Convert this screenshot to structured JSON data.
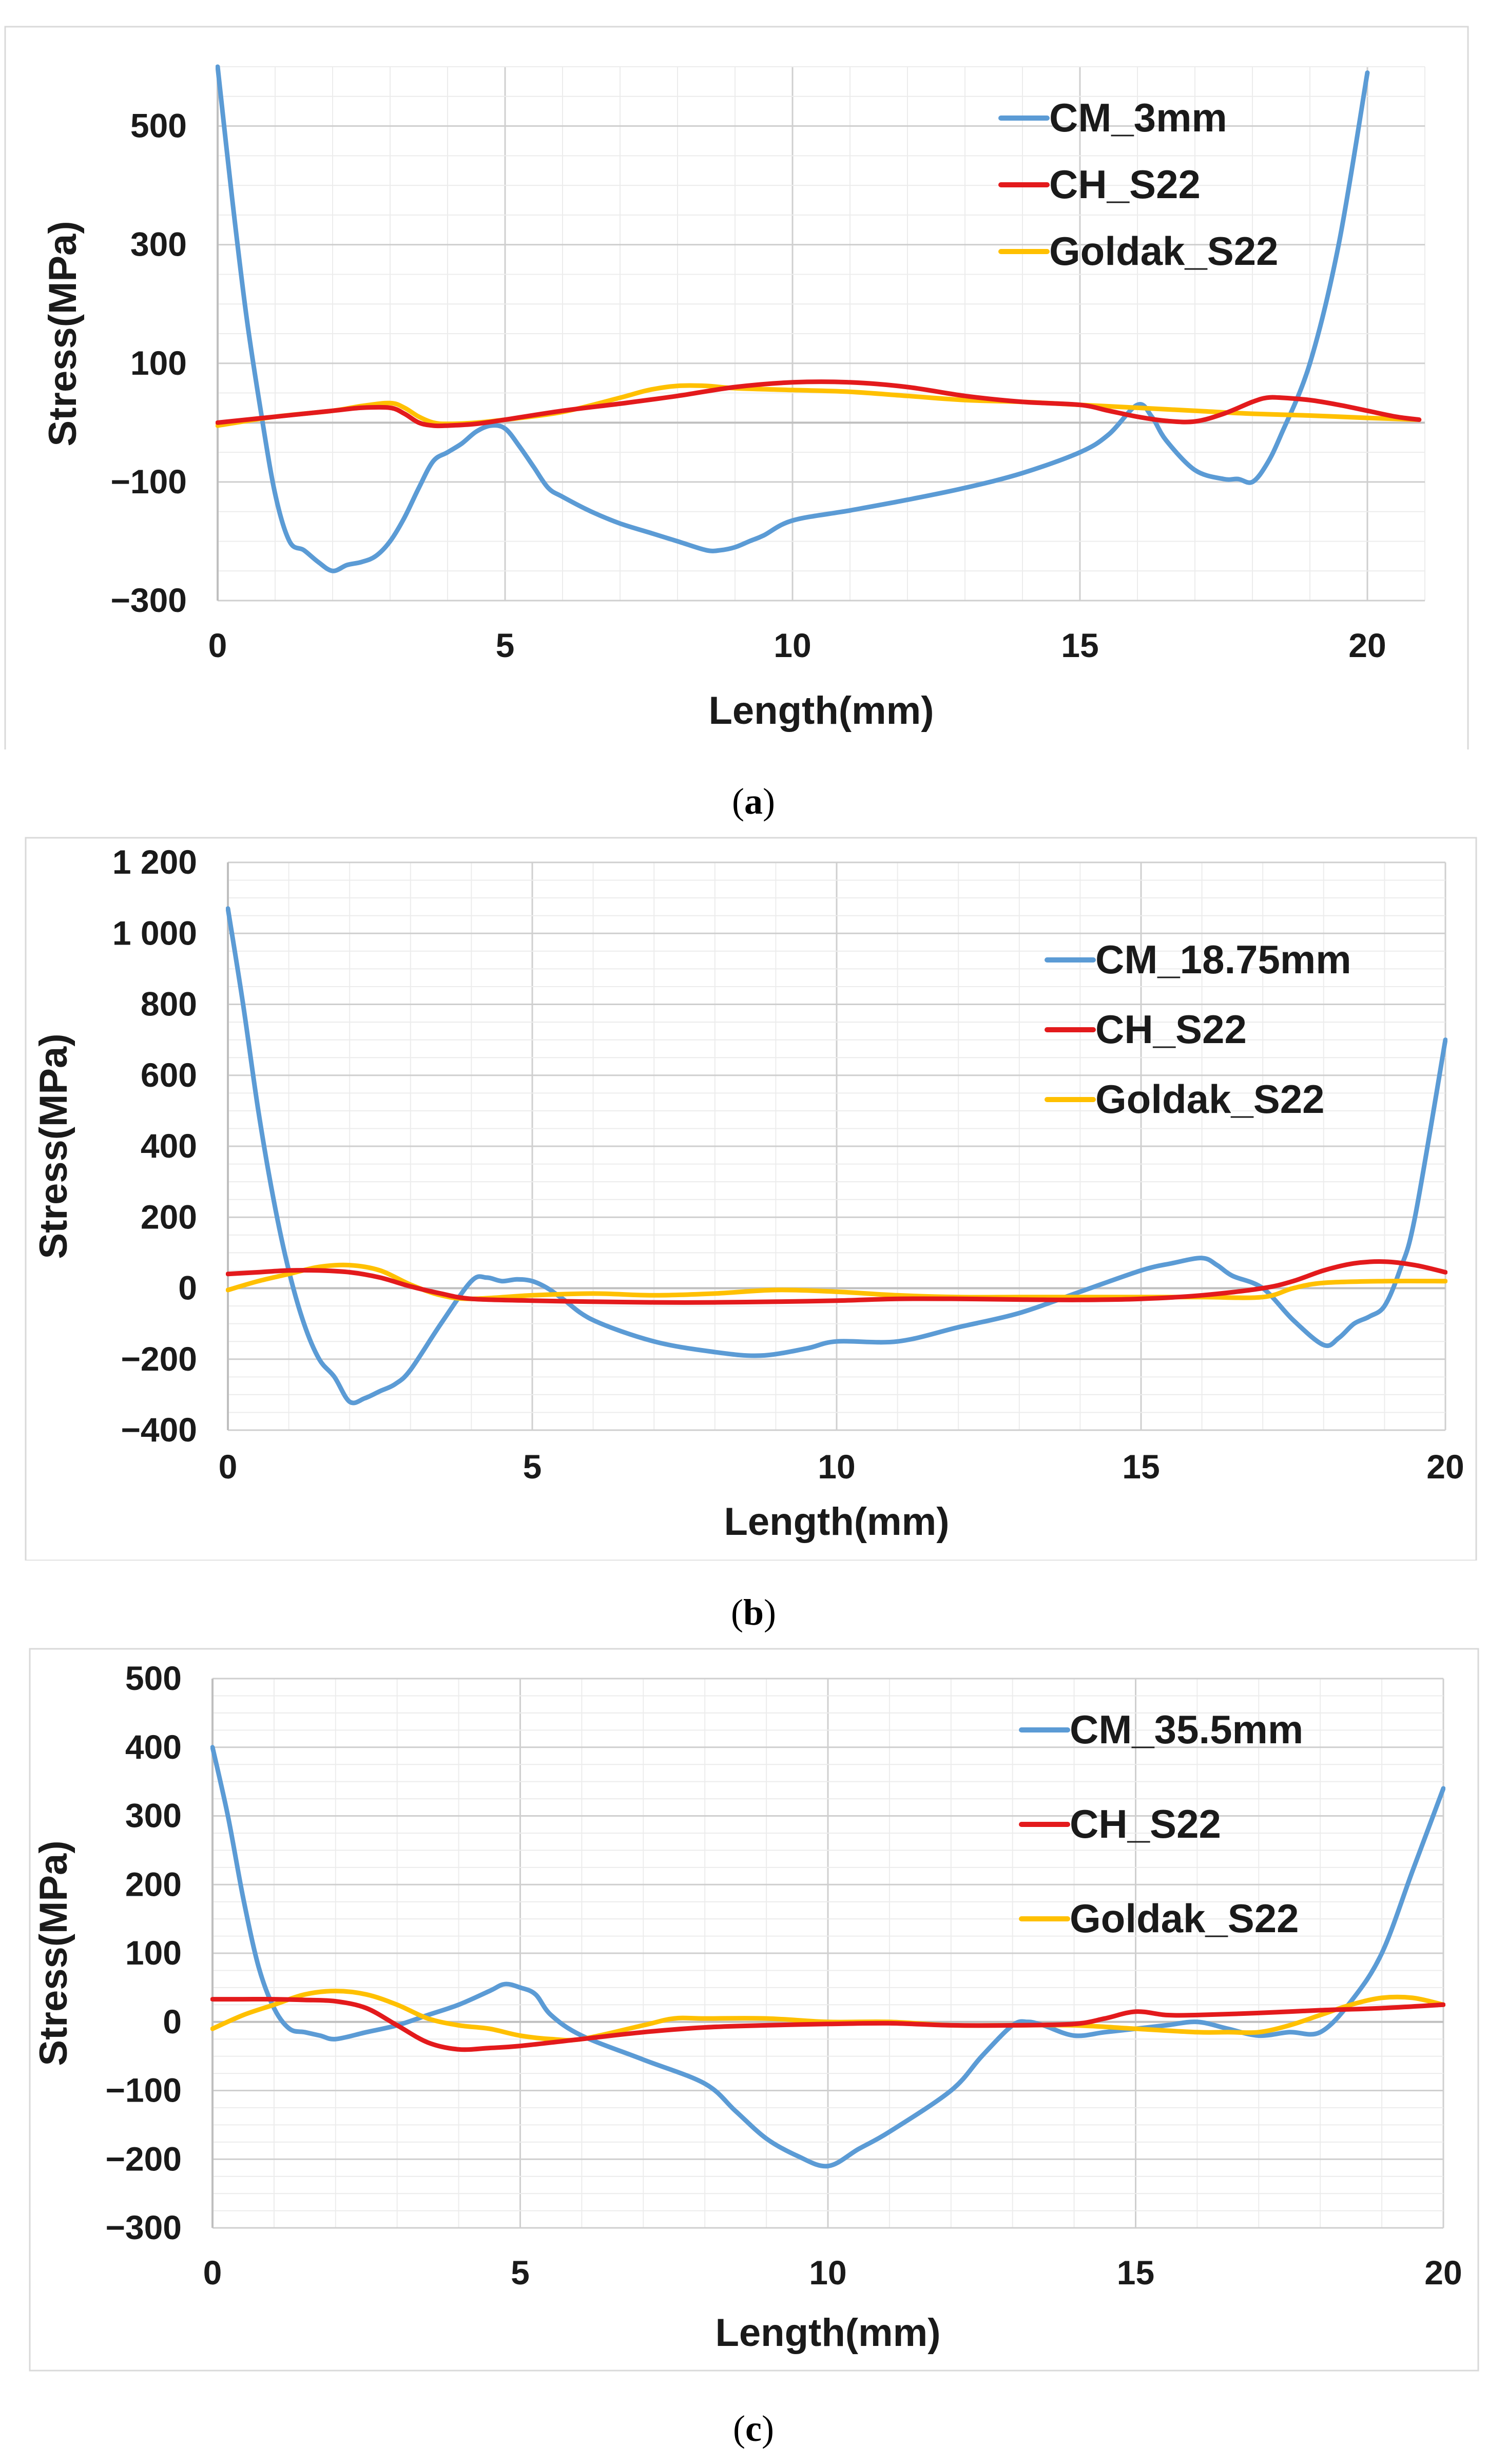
{
  "chart_data": [
    {
      "type": "line",
      "panel_label": "a",
      "xlabel": "Length(mm)",
      "ylabel": "Stress(MPa)",
      "xlim": [
        0,
        21
      ],
      "ylim": [
        -300,
        600
      ],
      "xticks": [
        0,
        5,
        10,
        15,
        20
      ],
      "yticks": [
        -300,
        -100,
        100,
        300,
        500
      ],
      "ytick_labels": [
        "−300",
        "−100",
        "100",
        "300",
        "500"
      ],
      "legend_position": "top-right",
      "series": [
        {
          "name": "CM_3mm",
          "color": "#5B9BD5",
          "x": [
            0,
            0.25,
            0.5,
            0.75,
            1.0,
            1.25,
            1.5,
            1.75,
            2.0,
            2.25,
            2.5,
            2.75,
            3.0,
            3.25,
            3.5,
            3.75,
            4.0,
            4.25,
            4.5,
            4.75,
            5.0,
            5.25,
            5.5,
            5.75,
            6.0,
            6.5,
            7.0,
            7.5,
            8.0,
            8.5,
            8.75,
            9.0,
            9.25,
            9.5,
            10.0,
            11.0,
            12.0,
            13.0,
            14.0,
            15.0,
            15.5,
            16.0,
            16.25,
            16.5,
            17.0,
            17.5,
            17.75,
            18.0,
            18.25,
            18.5,
            19.0,
            19.5,
            20.0
          ],
          "y": [
            600,
            380,
            180,
            20,
            -120,
            -200,
            -215,
            -235,
            -250,
            -240,
            -235,
            -225,
            -200,
            -160,
            -110,
            -65,
            -50,
            -35,
            -15,
            -5,
            -10,
            -40,
            -75,
            -110,
            -125,
            -150,
            -170,
            -185,
            -200,
            -215,
            -215,
            -210,
            -200,
            -190,
            -165,
            -148,
            -130,
            -110,
            -85,
            -50,
            -20,
            30,
            10,
            -30,
            -80,
            -95,
            -95,
            -100,
            -70,
            -20,
            100,
            300,
            590
          ]
        },
        {
          "name": "CH_S22",
          "color": "#E31A1C",
          "x": [
            0,
            1,
            2,
            2.5,
            3.0,
            3.25,
            3.5,
            3.75,
            4.0,
            4.5,
            5,
            6,
            7,
            8,
            9,
            10,
            11,
            12,
            13,
            14,
            15,
            15.5,
            16,
            16.5,
            17,
            17.5,
            18,
            18.25,
            18.5,
            19,
            19.5,
            20,
            20.5,
            20.9
          ],
          "y": [
            0,
            10,
            20,
            25,
            25,
            15,
            0,
            -5,
            -5,
            -2,
            5,
            20,
            32,
            45,
            60,
            68,
            68,
            60,
            45,
            35,
            30,
            20,
            10,
            3,
            2,
            15,
            35,
            42,
            42,
            38,
            30,
            20,
            10,
            5
          ]
        },
        {
          "name": "Goldak_S22",
          "color": "#FFC000",
          "x": [
            0,
            1,
            2,
            2.5,
            3.0,
            3.25,
            3.5,
            3.75,
            4.0,
            4.5,
            5,
            6,
            7,
            7.5,
            8,
            8.5,
            9,
            10,
            11,
            12,
            13,
            14,
            15,
            16,
            17,
            18,
            19,
            20,
            20.9
          ],
          "y": [
            -5,
            10,
            20,
            28,
            33,
            25,
            10,
            0,
            -2,
            0,
            5,
            18,
            42,
            55,
            62,
            62,
            58,
            55,
            52,
            45,
            38,
            35,
            30,
            25,
            20,
            15,
            12,
            8,
            5
          ]
        }
      ]
    },
    {
      "type": "line",
      "panel_label": "b",
      "xlabel": "Length(mm)",
      "ylabel": "Stress(MPa)",
      "xlim": [
        0,
        20
      ],
      "ylim": [
        -400,
        1200
      ],
      "xticks": [
        0,
        5,
        10,
        15,
        20
      ],
      "yticks": [
        -400,
        -200,
        0,
        200,
        400,
        600,
        800,
        1000,
        1200
      ],
      "ytick_labels": [
        "−400",
        "−200",
        "0",
        "200",
        "400",
        "600",
        "800",
        "1 000",
        "1 200"
      ],
      "legend_position": "right",
      "series": [
        {
          "name": "CM_18.75mm",
          "color": "#5B9BD5",
          "x": [
            0,
            0.25,
            0.5,
            0.75,
            1.0,
            1.25,
            1.5,
            1.75,
            2.0,
            2.25,
            2.5,
            2.75,
            3.0,
            3.5,
            4.0,
            4.25,
            4.5,
            4.75,
            5.0,
            5.25,
            5.5,
            6,
            7,
            8,
            8.75,
            9.5,
            10,
            11,
            12,
            13,
            14,
            15,
            15.5,
            16,
            16.25,
            16.5,
            17,
            17.5,
            18,
            18.25,
            18.5,
            18.75,
            19,
            19.25,
            19.5,
            20
          ],
          "y": [
            1070,
            800,
            500,
            250,
            50,
            -100,
            -200,
            -250,
            -320,
            -310,
            -290,
            -270,
            -230,
            -100,
            20,
            30,
            20,
            25,
            20,
            0,
            -30,
            -90,
            -150,
            -180,
            -190,
            -170,
            -150,
            -150,
            -110,
            -70,
            -10,
            50,
            70,
            85,
            65,
            35,
            0,
            -90,
            -160,
            -140,
            -100,
            -80,
            -50,
            50,
            200,
            700
          ]
        },
        {
          "name": "CH_S22",
          "color": "#E31A1C",
          "x": [
            0,
            0.5,
            1,
            1.5,
            2,
            2.5,
            3,
            3.5,
            4,
            5,
            6,
            7,
            8,
            9,
            10,
            11,
            12,
            13,
            14,
            15,
            16,
            17,
            17.5,
            18,
            18.5,
            19,
            19.5,
            20
          ],
          "y": [
            40,
            45,
            50,
            50,
            45,
            30,
            5,
            -15,
            -30,
            -35,
            -38,
            -40,
            -40,
            -38,
            -35,
            -30,
            -30,
            -32,
            -33,
            -30,
            -20,
            0,
            20,
            50,
            70,
            75,
            65,
            45
          ]
        },
        {
          "name": "Goldak_S22",
          "color": "#FFC000",
          "x": [
            0,
            0.5,
            1,
            1.5,
            2,
            2.5,
            3,
            3.5,
            4,
            5,
            6,
            7,
            8,
            9,
            10,
            11,
            12,
            13,
            14,
            15,
            16,
            17,
            17.5,
            18,
            19,
            20
          ],
          "y": [
            -5,
            20,
            40,
            60,
            65,
            50,
            10,
            -20,
            -30,
            -20,
            -15,
            -20,
            -15,
            -5,
            -10,
            -20,
            -25,
            -25,
            -25,
            -25,
            -25,
            -25,
            0,
            15,
            20,
            20
          ]
        }
      ]
    },
    {
      "type": "line",
      "panel_label": "c",
      "xlabel": "Length(mm)",
      "ylabel": "Stress(MPa)",
      "xlim": [
        0,
        20
      ],
      "ylim": [
        -300,
        500
      ],
      "xticks": [
        0,
        5,
        10,
        15,
        20
      ],
      "yticks": [
        -300,
        -200,
        -100,
        0,
        100,
        200,
        300,
        400,
        500
      ],
      "ytick_labels": [
        "−300",
        "−200",
        "−100",
        "0",
        "100",
        "200",
        "300",
        "400",
        "500"
      ],
      "legend_position": "top-right",
      "series": [
        {
          "name": "CM_35.5mm",
          "color": "#5B9BD5",
          "x": [
            0,
            0.25,
            0.5,
            0.75,
            1.0,
            1.25,
            1.5,
            1.75,
            2.0,
            2.5,
            3,
            3.5,
            4,
            4.5,
            4.75,
            5.0,
            5.25,
            5.5,
            6,
            7,
            8,
            8.5,
            9,
            9.5,
            10,
            10.5,
            11,
            12,
            12.5,
            13,
            13.25,
            13.5,
            14,
            14.5,
            15,
            15.5,
            16,
            16.5,
            17,
            17.5,
            18,
            18.5,
            19,
            19.5,
            20
          ],
          "y": [
            400,
            300,
            180,
            80,
            20,
            -10,
            -15,
            -20,
            -25,
            -15,
            -5,
            10,
            25,
            45,
            55,
            50,
            40,
            10,
            -20,
            -55,
            -90,
            -130,
            -170,
            -195,
            -210,
            -185,
            -160,
            -100,
            -50,
            -5,
            0,
            -5,
            -20,
            -15,
            -10,
            -5,
            0,
            -10,
            -20,
            -15,
            -15,
            30,
            100,
            220,
            340
          ]
        },
        {
          "name": "CH_S22",
          "color": "#E31A1C",
          "x": [
            0,
            0.5,
            1,
            1.5,
            2,
            2.5,
            3,
            3.5,
            4,
            4.5,
            5,
            6,
            7,
            8,
            9,
            10,
            11,
            12,
            13,
            14,
            14.5,
            15,
            15.5,
            16,
            17,
            18,
            19,
            20
          ],
          "y": [
            33,
            33,
            33,
            32,
            30,
            20,
            -5,
            -30,
            -40,
            -38,
            -35,
            -25,
            -15,
            -8,
            -5,
            -3,
            -2,
            -5,
            -5,
            -3,
            5,
            15,
            10,
            10,
            13,
            17,
            20,
            25
          ]
        },
        {
          "name": "Goldak_S22",
          "color": "#FFC000",
          "x": [
            0,
            0.5,
            1,
            1.5,
            2,
            2.5,
            3,
            3.5,
            4,
            4.5,
            5,
            5.5,
            6,
            7,
            7.5,
            8,
            9,
            10,
            11,
            12,
            13,
            14,
            15,
            16,
            16.5,
            17,
            17.5,
            18,
            18.5,
            19,
            19.5,
            20
          ],
          "y": [
            -10,
            10,
            25,
            40,
            45,
            40,
            25,
            5,
            -5,
            -10,
            -20,
            -25,
            -25,
            -5,
            5,
            5,
            5,
            0,
            0,
            -5,
            -5,
            -5,
            -10,
            -15,
            -15,
            -15,
            -5,
            10,
            25,
            35,
            35,
            25
          ]
        }
      ]
    }
  ]
}
